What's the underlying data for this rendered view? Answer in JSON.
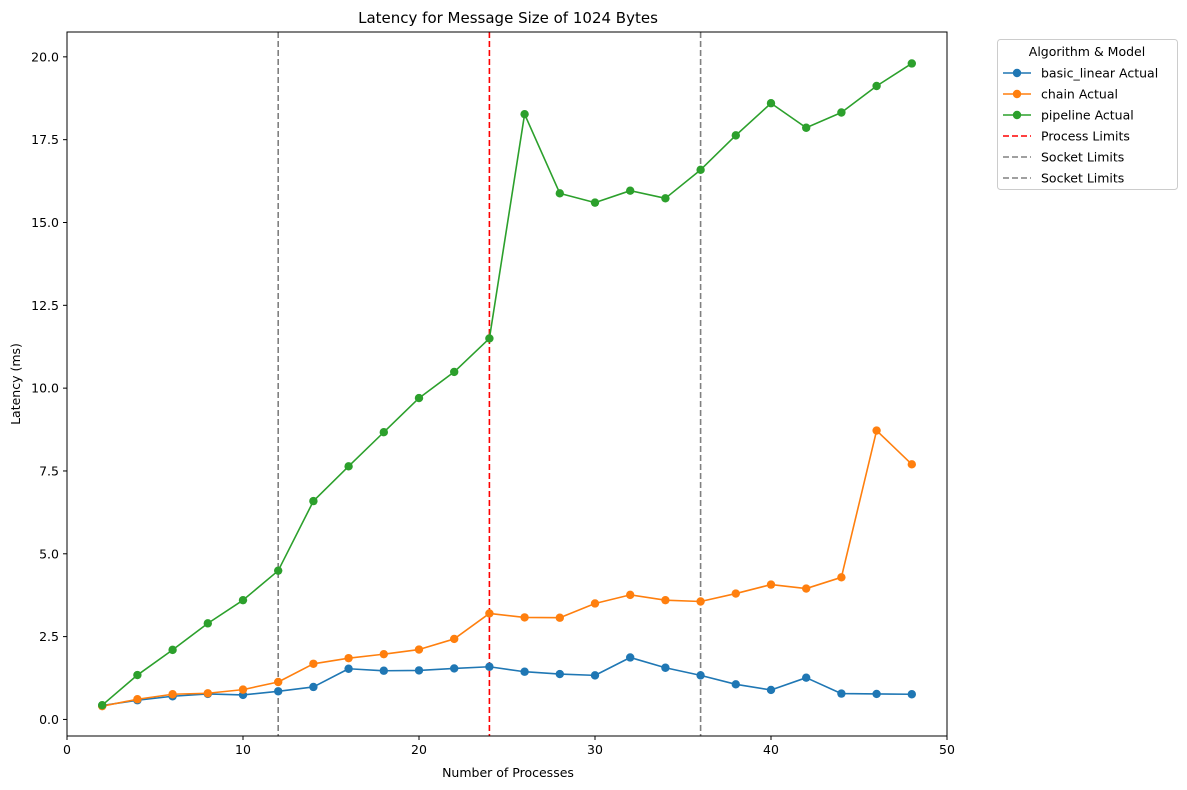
{
  "chart_data": {
    "type": "line",
    "title": "Latency for Message Size of 1024 Bytes",
    "xlabel": "Number of Processes",
    "ylabel": "Latency (ms)",
    "xlim": [
      0,
      50
    ],
    "ylim": [
      -0.5,
      20.75
    ],
    "xticks": [
      0,
      10,
      20,
      30,
      40,
      50
    ],
    "yticks": [
      0.0,
      2.5,
      5.0,
      7.5,
      10.0,
      12.5,
      15.0,
      17.5,
      20.0
    ],
    "ytick_labels": [
      "0.0",
      "2.5",
      "5.0",
      "7.5",
      "10.0",
      "12.5",
      "15.0",
      "17.5",
      "20.0"
    ],
    "grid": false,
    "legend": {
      "title": "Algorithm & Model",
      "placement": "outside-top-right"
    },
    "x": [
      2,
      4,
      6,
      8,
      10,
      12,
      14,
      16,
      18,
      20,
      22,
      24,
      26,
      28,
      30,
      32,
      34,
      36,
      38,
      40,
      42,
      44,
      46,
      48
    ],
    "series": [
      {
        "name": "basic_linear Actual",
        "color": "#1f77b4",
        "values": [
          0.42,
          0.58,
          0.7,
          0.77,
          0.74,
          0.85,
          0.98,
          1.53,
          1.47,
          1.48,
          1.54,
          1.59,
          1.44,
          1.37,
          1.33,
          1.87,
          1.56,
          1.33,
          1.06,
          0.89,
          1.26,
          0.78,
          0.77,
          0.76
        ]
      },
      {
        "name": "chain Actual",
        "color": "#ff7f0e",
        "values": [
          0.4,
          0.61,
          0.76,
          0.79,
          0.9,
          1.13,
          1.68,
          1.85,
          1.97,
          2.11,
          2.43,
          3.2,
          3.08,
          3.07,
          3.5,
          3.76,
          3.6,
          3.56,
          3.8,
          4.07,
          3.95,
          4.29,
          8.72,
          7.7
        ]
      },
      {
        "name": "pipeline Actual",
        "color": "#2ca02c",
        "values": [
          0.43,
          1.34,
          2.1,
          2.9,
          3.6,
          4.49,
          6.59,
          7.64,
          8.67,
          9.7,
          10.49,
          11.5,
          18.27,
          15.88,
          15.6,
          15.96,
          15.73,
          16.59,
          17.63,
          18.6,
          17.86,
          18.32,
          19.12,
          19.8
        ]
      }
    ],
    "vlines": [
      {
        "name": "Process Limits",
        "x": 24,
        "color": "#ff0000"
      },
      {
        "name": "Socket Limits",
        "x": 12,
        "color": "#808080"
      },
      {
        "name": "Socket Limits",
        "x": 36,
        "color": "#808080"
      }
    ]
  }
}
